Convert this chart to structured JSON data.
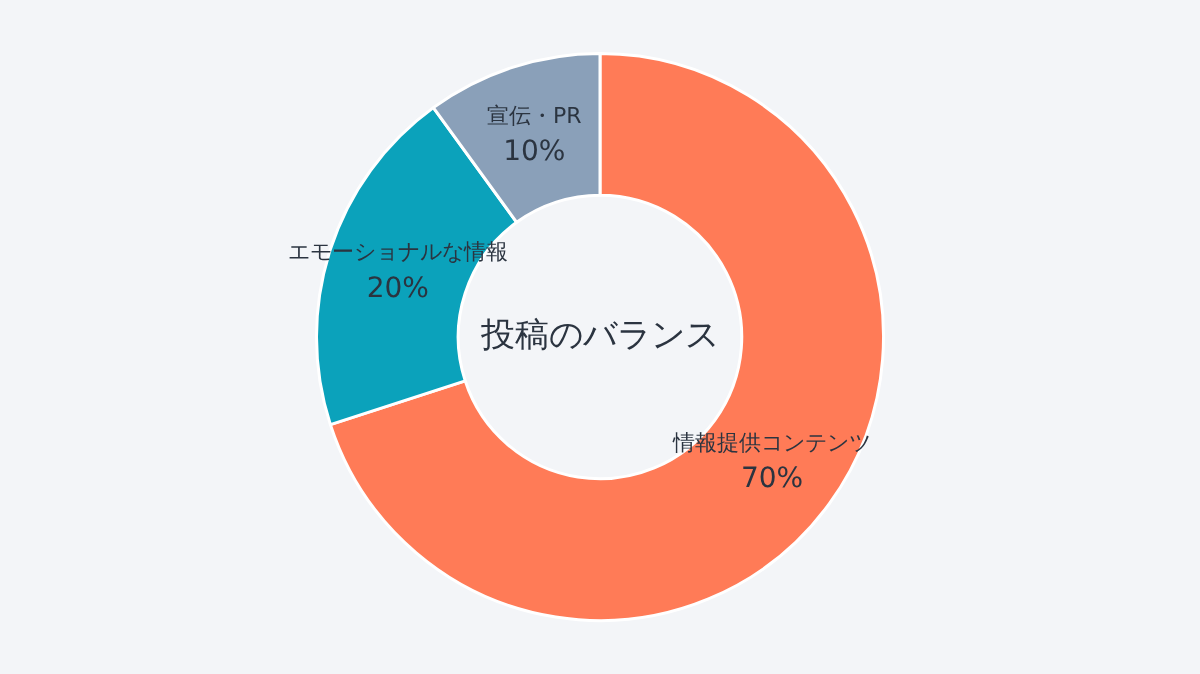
{
  "chart_data": {
    "type": "donut",
    "title": "投稿のバランス",
    "categories": [
      "情報提供コンテンツ",
      "エモーショナルな情報",
      "宣伝・PR"
    ],
    "values": [
      70,
      20,
      10
    ],
    "value_labels": [
      "70%",
      "20%",
      "10%"
    ],
    "colors": [
      "#ff7b57",
      "#0ba2bb",
      "#8aa0b9"
    ],
    "legend": false
  }
}
